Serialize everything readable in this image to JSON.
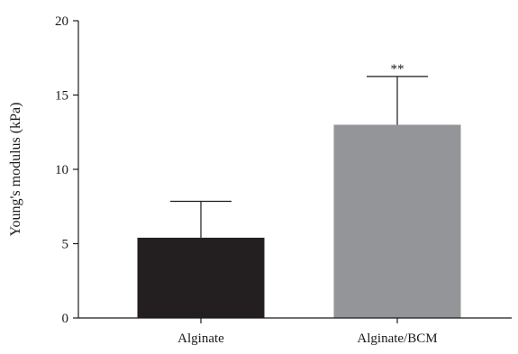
{
  "chart_data": {
    "type": "bar",
    "categories": [
      "Alginate",
      "Alginate/BCM"
    ],
    "values": [
      5.4,
      13.0
    ],
    "errors": [
      2.45,
      3.25
    ],
    "annotations": [
      "",
      "**"
    ],
    "colors": [
      "#231f20",
      "#939598"
    ],
    "title": "",
    "xlabel": "",
    "ylabel": "Young's modulus (kPa)",
    "ylim": [
      0,
      20
    ],
    "yticks": [
      0,
      5,
      10,
      15,
      20
    ],
    "grid": false,
    "legend": "none"
  }
}
